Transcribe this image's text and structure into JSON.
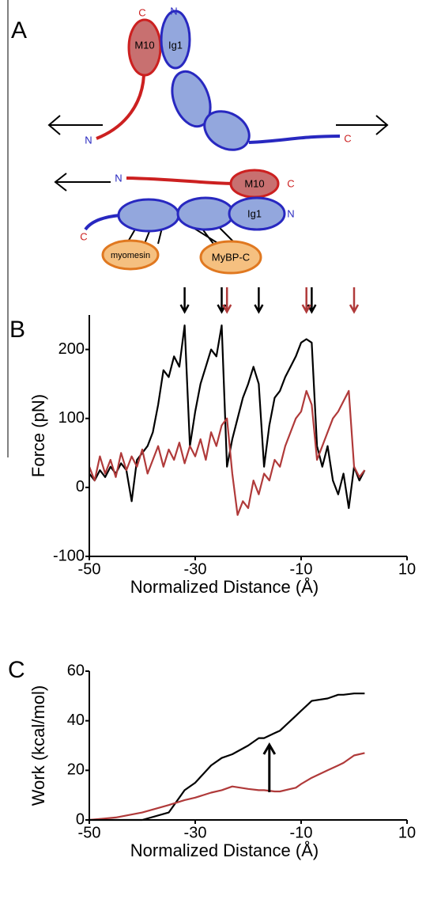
{
  "panel_labels": [
    "A",
    "B",
    "C"
  ],
  "diagram": {
    "top": {
      "m10_c": "C",
      "ig1_n": "N",
      "m10": "M10",
      "ig1": "Ig1",
      "red_n": "N",
      "blue_c": "C"
    },
    "bottom": {
      "blue_n": "N",
      "m10": "M10",
      "m10_c": "C",
      "ig1": "Ig1",
      "ig1_n": "N",
      "blue_c": "C",
      "myomesin": "myomesin",
      "mybpc": "MyBP-C"
    }
  },
  "chart_data": [
    {
      "type": "line",
      "x_label": "Normalized Distance (Å)",
      "y_label": "Force (pN)",
      "xlim": [
        -50,
        10
      ],
      "xticks": [
        -50,
        -30,
        -10,
        10
      ],
      "ylim": [
        -100,
        250
      ],
      "yticks": [
        -100,
        0,
        100,
        200
      ],
      "x": [
        -50,
        -49,
        -48,
        -47,
        -46,
        -45,
        -44,
        -43,
        -42,
        -41,
        -40,
        -39,
        -38,
        -37,
        -36,
        -35,
        -34,
        -33,
        -32,
        -31,
        -30,
        -29,
        -28,
        -27,
        -26,
        -25,
        -24,
        -23,
        -22,
        -21,
        -20,
        -19,
        -18,
        -17,
        -16,
        -15,
        -14,
        -13,
        -12,
        -11,
        -10,
        -9,
        -8,
        -7,
        -6,
        -5,
        -4,
        -3,
        -2,
        -1,
        0,
        1,
        2
      ],
      "series": [
        {
          "color": "#000000",
          "values": [
            20,
            10,
            25,
            15,
            30,
            20,
            35,
            25,
            -20,
            40,
            50,
            60,
            80,
            120,
            170,
            160,
            190,
            175,
            235,
            60,
            110,
            150,
            175,
            200,
            190,
            235,
            30,
            70,
            100,
            130,
            150,
            175,
            150,
            30,
            90,
            130,
            140,
            160,
            175,
            190,
            210,
            215,
            210,
            60,
            30,
            60,
            10,
            -10,
            20,
            -30,
            30,
            10,
            25
          ]
        },
        {
          "color": "#b03a3a",
          "values": [
            30,
            10,
            45,
            20,
            40,
            15,
            50,
            25,
            45,
            30,
            55,
            20,
            40,
            60,
            30,
            55,
            40,
            65,
            35,
            60,
            45,
            70,
            40,
            80,
            60,
            90,
            100,
            20,
            -40,
            -20,
            -30,
            10,
            -10,
            20,
            10,
            40,
            30,
            60,
            80,
            100,
            110,
            140,
            120,
            40,
            60,
            80,
            100,
            110,
            125,
            140,
            30,
            15,
            25
          ]
        }
      ],
      "event_arrows": [
        {
          "color": "#000000",
          "x": [
            -32,
            -25,
            -18,
            -8
          ]
        },
        {
          "color": "#b03a3a",
          "x": [
            -24,
            -9,
            0
          ]
        }
      ]
    },
    {
      "type": "line",
      "x_label": "Normalized Distance (Å)",
      "y_label": "Work (kcal/mol)",
      "xlim": [
        -50,
        10
      ],
      "xticks": [
        -50,
        -30,
        -10,
        10
      ],
      "ylim": [
        0,
        60
      ],
      "yticks": [
        0,
        20,
        40,
        60
      ],
      "x": [
        -50,
        -45,
        -40,
        -35,
        -32,
        -30,
        -27,
        -25,
        -23,
        -20,
        -18,
        -17,
        -15,
        -14,
        -12,
        -11,
        -10,
        -8,
        -5,
        -3,
        -2,
        0,
        2
      ],
      "series": [
        {
          "color": "#000000",
          "values": [
            0,
            0,
            0,
            3,
            12,
            15,
            22,
            25,
            26.5,
            30,
            33,
            33,
            35,
            36,
            40,
            42,
            44,
            48,
            49,
            50.5,
            50.5,
            51,
            51
          ]
        },
        {
          "color": "#b03a3a",
          "values": [
            0,
            1,
            3,
            6,
            8,
            9,
            11,
            12,
            13.5,
            12.5,
            12,
            12,
            11.5,
            11.5,
            12.5,
            13,
            14.5,
            17,
            20,
            22,
            23,
            26,
            27
          ]
        }
      ],
      "annotation_arrow_x": -16
    }
  ]
}
